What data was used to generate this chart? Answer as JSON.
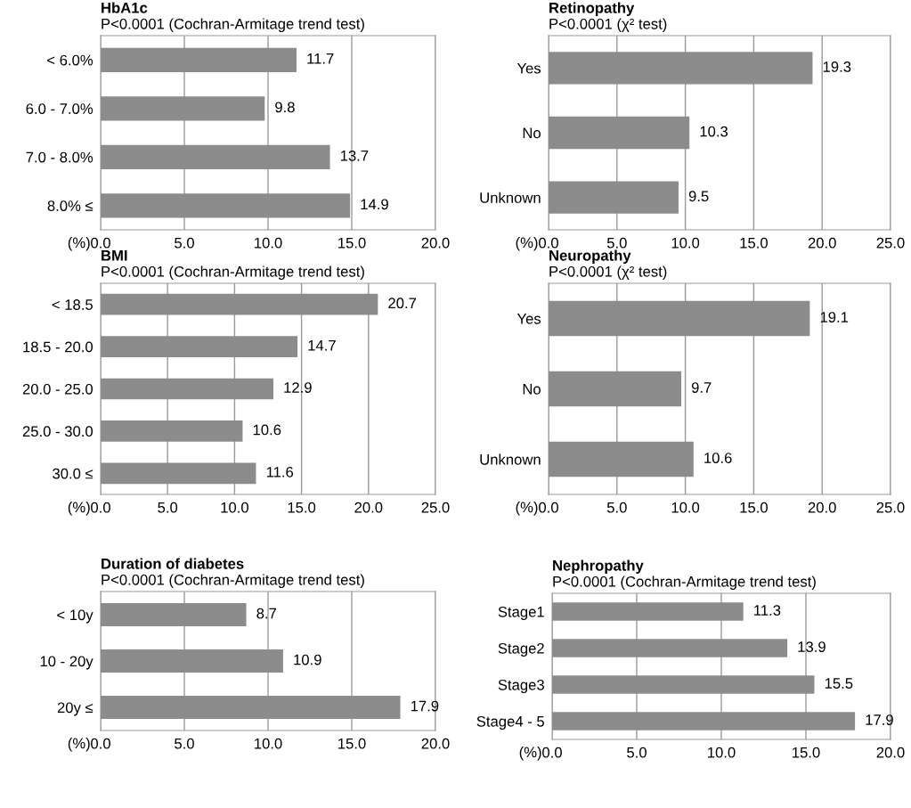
{
  "chart_data": [
    {
      "type": "bar",
      "orientation": "horizontal",
      "title": "HbA1c",
      "subtitle": "P<0.0001 (Cochran-Armitage trend test)",
      "xlabel": "(%)",
      "categories": [
        "< 6.0%",
        "6.0 - 7.0%",
        "7.0 - 8.0%",
        "8.0% ≤"
      ],
      "values": [
        11.7,
        9.8,
        13.7,
        14.9
      ],
      "color": "#8c8c8c",
      "xlim": [
        0,
        20
      ],
      "xticks": [
        {
          "value": 0,
          "label": "0.0"
        },
        {
          "value": 5,
          "label": "5.0"
        },
        {
          "value": 10,
          "label": "10.0"
        },
        {
          "value": 15,
          "label": "15.0"
        },
        {
          "value": 20,
          "label": "20.0"
        }
      ],
      "grid": "x",
      "data_labels": true
    },
    {
      "type": "bar",
      "orientation": "horizontal",
      "title": "Retinopathy",
      "subtitle": "P<0.0001 (χ² test)",
      "xlabel": "(%)",
      "categories": [
        "Yes",
        "No",
        "Unknown"
      ],
      "values": [
        19.3,
        10.3,
        9.5
      ],
      "color": "#8c8c8c",
      "xlim": [
        0,
        25
      ],
      "xticks": [
        {
          "value": 0,
          "label": "0.0"
        },
        {
          "value": 5,
          "label": "5.0"
        },
        {
          "value": 10,
          "label": "10.0"
        },
        {
          "value": 15,
          "label": "15.0"
        },
        {
          "value": 20,
          "label": "20.0"
        },
        {
          "value": 25,
          "label": "25.0"
        }
      ],
      "grid": "x",
      "data_labels": true
    },
    {
      "type": "bar",
      "orientation": "horizontal",
      "title": "BMI",
      "subtitle": "P<0.0001 (Cochran-Armitage trend test)",
      "xlabel": "(%)",
      "categories": [
        "< 18.5",
        "18.5 - 20.0",
        "20.0 - 25.0",
        "25.0 - 30.0",
        "30.0 ≤"
      ],
      "values": [
        20.7,
        14.7,
        12.9,
        10.6,
        11.6
      ],
      "color": "#8c8c8c",
      "xlim": [
        0,
        25
      ],
      "xticks": [
        {
          "value": 0,
          "label": "0.0"
        },
        {
          "value": 5,
          "label": "5.0"
        },
        {
          "value": 10,
          "label": "10.0"
        },
        {
          "value": 15,
          "label": "15.0"
        },
        {
          "value": 20,
          "label": "20.0"
        },
        {
          "value": 25,
          "label": "25.0"
        }
      ],
      "grid": "x",
      "data_labels": true
    },
    {
      "type": "bar",
      "orientation": "horizontal",
      "title": "Neuropathy",
      "subtitle": "P<0.0001 (χ² test)",
      "xlabel": "(%)",
      "categories": [
        "Yes",
        "No",
        "Unknown"
      ],
      "values": [
        19.1,
        9.7,
        10.6
      ],
      "color": "#8c8c8c",
      "xlim": [
        0,
        25
      ],
      "xticks": [
        {
          "value": 0,
          "label": "0.0"
        },
        {
          "value": 5,
          "label": "5.0"
        },
        {
          "value": 10,
          "label": "10.0"
        },
        {
          "value": 15,
          "label": "15.0"
        },
        {
          "value": 20,
          "label": "20.0"
        },
        {
          "value": 25,
          "label": "25.0"
        }
      ],
      "grid": "x",
      "data_labels": true
    },
    {
      "type": "bar",
      "orientation": "horizontal",
      "title": "Duration of diabetes",
      "subtitle": "P<0.0001 (Cochran-Armitage trend test)",
      "xlabel": "(%)",
      "categories": [
        "< 10y",
        "10 - 20y",
        "20y ≤"
      ],
      "values": [
        8.7,
        10.9,
        17.9
      ],
      "color": "#8c8c8c",
      "xlim": [
        0,
        20
      ],
      "xticks": [
        {
          "value": 0,
          "label": "0.0"
        },
        {
          "value": 5,
          "label": "5.0"
        },
        {
          "value": 10,
          "label": "10.0"
        },
        {
          "value": 15,
          "label": "15.0"
        },
        {
          "value": 20,
          "label": "20.0"
        }
      ],
      "grid": "x",
      "data_labels": true
    },
    {
      "type": "bar",
      "orientation": "horizontal",
      "title": "Nephropathy",
      "subtitle": "P<0.0001 (Cochran-Armitage trend test)",
      "xlabel": "(%)",
      "categories": [
        "Stage1",
        "Stage2",
        "Stage3",
        "Stage4 - 5"
      ],
      "values": [
        11.3,
        13.9,
        15.5,
        17.9
      ],
      "color": "#8c8c8c",
      "xlim": [
        0,
        20
      ],
      "xticks": [
        {
          "value": 0,
          "label": "0.0"
        },
        {
          "value": 5,
          "label": "5.0"
        },
        {
          "value": 10,
          "label": "10.0"
        },
        {
          "value": 15,
          "label": "15.0"
        },
        {
          "value": 20,
          "label": "20.0"
        }
      ],
      "grid": "x",
      "data_labels": true
    }
  ]
}
